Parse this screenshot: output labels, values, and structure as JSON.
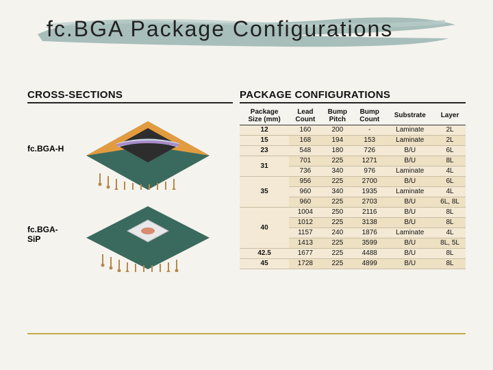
{
  "title": "fc.BGA Package Configurations",
  "brush_color": "#9fb8b5",
  "sections": {
    "cross_sections_heading": "CROSS-SECTIONS",
    "package_config_heading": "PACKAGE CONFIGURATIONS"
  },
  "cross_sections": [
    {
      "label": "fc.BGA-H",
      "substrate_color": "#e29b3f",
      "die_color": "#c8d3e6",
      "pcb_color": "#3a6a5d",
      "ball_color": "#b5884b"
    },
    {
      "label": "fc.BGA-SiP",
      "substrate_color": "#3a6a5d",
      "die_color": "#e8e8ea",
      "pcb_color": "#3a6a5d",
      "ball_color": "#b5884b"
    }
  ],
  "table": {
    "bg_color": "#f3e9d4",
    "alt_bg_color": "#ede0c3",
    "columns": [
      "Package Size (mm)",
      "Lead Count",
      "Bump Pitch",
      "Bump Count",
      "Substrate",
      "Layer"
    ],
    "groups": [
      {
        "size": "12",
        "rows": [
          [
            "160",
            "200",
            "-",
            "Laminate",
            "2L"
          ]
        ]
      },
      {
        "size": "15",
        "rows": [
          [
            "168",
            "194",
            "153",
            "Laminate",
            "2L"
          ]
        ]
      },
      {
        "size": "23",
        "rows": [
          [
            "548",
            "180",
            "726",
            "B/U",
            "6L"
          ]
        ]
      },
      {
        "size": "31",
        "rows": [
          [
            "701",
            "225",
            "1271",
            "B/U",
            "8L"
          ],
          [
            "736",
            "340",
            "976",
            "Laminate",
            "4L"
          ]
        ]
      },
      {
        "size": "35",
        "rows": [
          [
            "956",
            "225",
            "2700",
            "B/U",
            "6L"
          ],
          [
            "960",
            "340",
            "1935",
            "Laminate",
            "4L"
          ],
          [
            "960",
            "225",
            "2703",
            "B/U",
            "6L, 8L"
          ]
        ]
      },
      {
        "size": "40",
        "rows": [
          [
            "1004",
            "250",
            "2116",
            "B/U",
            "8L"
          ],
          [
            "1012",
            "225",
            "3138",
            "B/U",
            "8L"
          ],
          [
            "1157",
            "240",
            "1876",
            "Laminate",
            "4L"
          ],
          [
            "1413",
            "225",
            "3599",
            "B/U",
            "8L, 5L"
          ]
        ]
      },
      {
        "size": "42.5",
        "rows": [
          [
            "1677",
            "225",
            "4488",
            "B/U",
            "8L"
          ]
        ]
      },
      {
        "size": "45",
        "rows": [
          [
            "1728",
            "225",
            "4899",
            "B/U",
            "8L"
          ]
        ]
      }
    ]
  }
}
